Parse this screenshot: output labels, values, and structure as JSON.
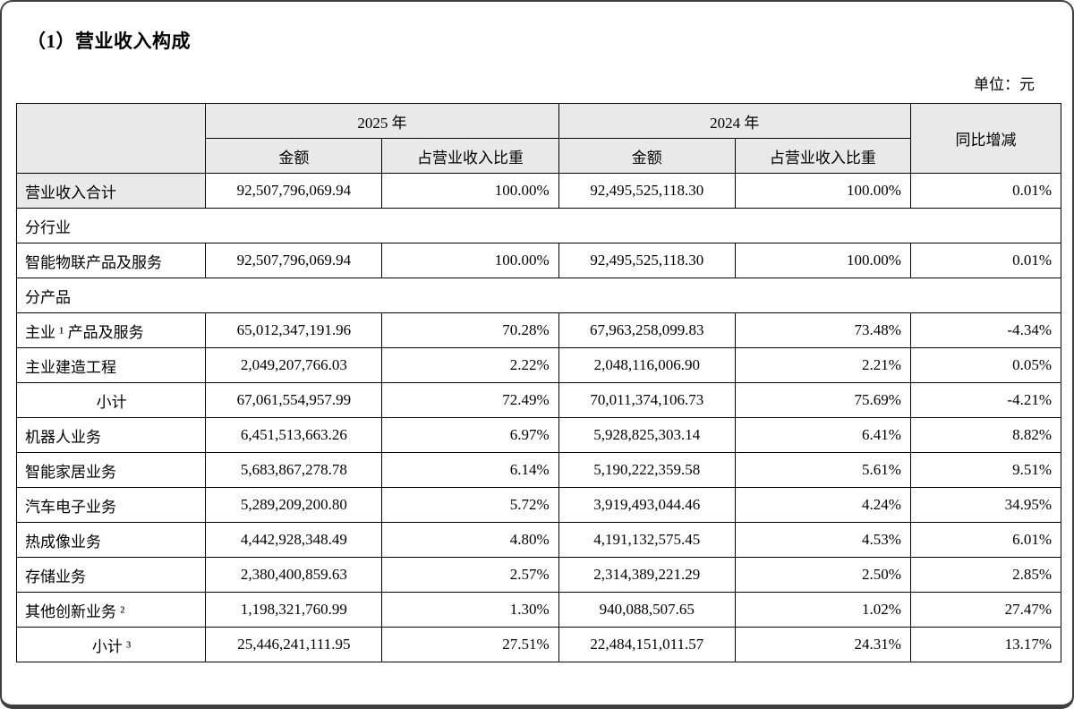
{
  "page": {
    "title": "（1）营业收入构成",
    "unit_label": "单位：元"
  },
  "table": {
    "year_groups": [
      "2025 年",
      "2024 年"
    ],
    "yoy_header": "同比增减",
    "sub_headers": [
      "金额",
      "占营业收入比重",
      "金额",
      "占营业收入比重"
    ],
    "column_aligns": [
      "center",
      "right",
      "center",
      "right",
      "right"
    ],
    "rows": [
      {
        "type": "data",
        "label": "营业收入合计",
        "shaded": true,
        "cells": [
          "92,507,796,069.94",
          "100.00%",
          "92,495,525,118.30",
          "100.00%",
          "0.01%"
        ]
      },
      {
        "type": "section",
        "label": "分行业"
      },
      {
        "type": "data",
        "label": "智能物联产品及服务",
        "cells": [
          "92,507,796,069.94",
          "100.00%",
          "92,495,525,118.30",
          "100.00%",
          "0.01%"
        ]
      },
      {
        "type": "section",
        "label": "分产品"
      },
      {
        "type": "data",
        "label": "主业 ¹ 产品及服务",
        "cells": [
          "65,012,347,191.96",
          "70.28%",
          "67,963,258,099.83",
          "73.48%",
          "-4.34%"
        ]
      },
      {
        "type": "data",
        "label": "主业建造工程",
        "cells": [
          "2,049,207,766.03",
          "2.22%",
          "2,048,116,006.90",
          "2.21%",
          "0.05%"
        ]
      },
      {
        "type": "data",
        "label": "小计",
        "center": true,
        "cells": [
          "67,061,554,957.99",
          "72.49%",
          "70,011,374,106.73",
          "75.69%",
          "-4.21%"
        ]
      },
      {
        "type": "data",
        "label": "机器人业务",
        "cells": [
          "6,451,513,663.26",
          "6.97%",
          "5,928,825,303.14",
          "6.41%",
          "8.82%"
        ]
      },
      {
        "type": "data",
        "label": "智能家居业务",
        "cells": [
          "5,683,867,278.78",
          "6.14%",
          "5,190,222,359.58",
          "5.61%",
          "9.51%"
        ]
      },
      {
        "type": "data",
        "label": "汽车电子业务",
        "cells": [
          "5,289,209,200.80",
          "5.72%",
          "3,919,493,044.46",
          "4.24%",
          "34.95%"
        ]
      },
      {
        "type": "data",
        "label": "热成像业务",
        "cells": [
          "4,442,928,348.49",
          "4.80%",
          "4,191,132,575.45",
          "4.53%",
          "6.01%"
        ]
      },
      {
        "type": "data",
        "label": "存储业务",
        "cells": [
          "2,380,400,859.63",
          "2.57%",
          "2,314,389,221.29",
          "2.50%",
          "2.85%"
        ]
      },
      {
        "type": "data",
        "label": "其他创新业务 ²",
        "cells": [
          "1,198,321,760.99",
          "1.30%",
          "940,088,507.65",
          "1.02%",
          "27.47%"
        ]
      },
      {
        "type": "data",
        "label": "小计 ³",
        "center": true,
        "cells": [
          "25,446,241,111.95",
          "27.51%",
          "22,484,151,011.57",
          "24.31%",
          "13.17%"
        ]
      }
    ]
  }
}
